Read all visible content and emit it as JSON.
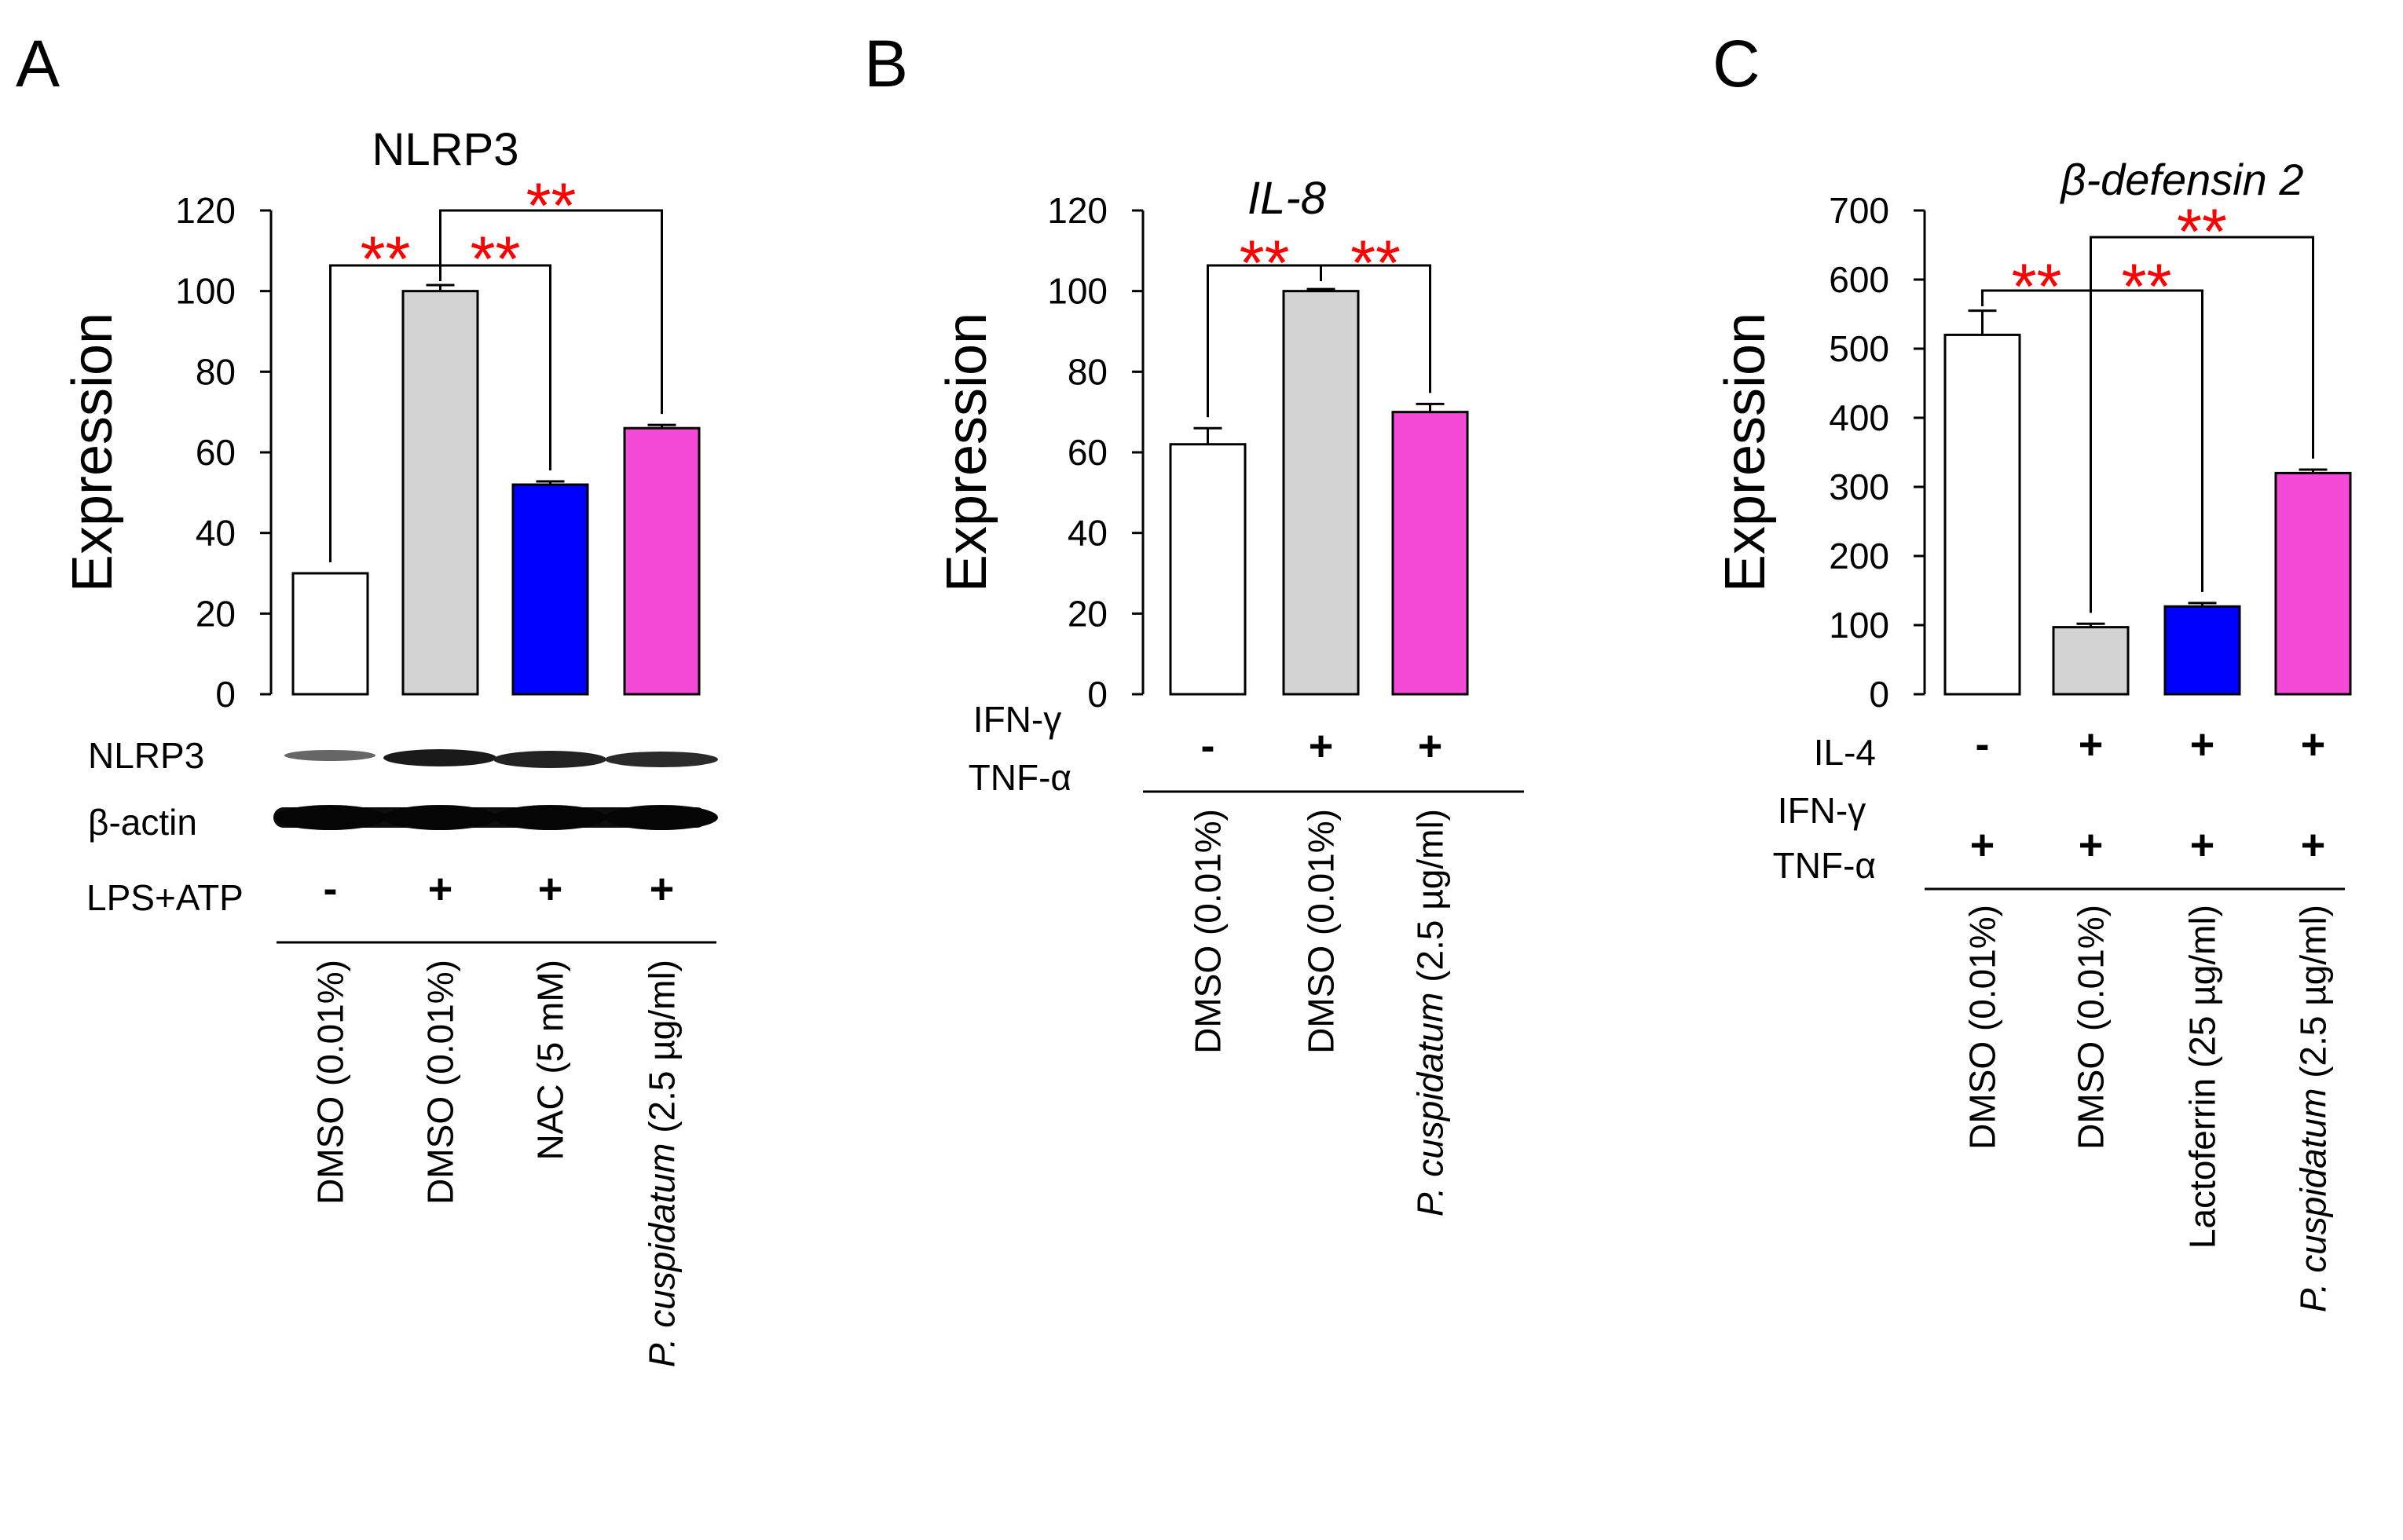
{
  "chart_data": [
    {
      "panel": "A",
      "type": "bar",
      "title": "NLRP3",
      "ylabel": "Expression",
      "ylim": [
        0,
        120
      ],
      "yticks": [
        "0",
        "20",
        "40",
        "60",
        "80",
        "100",
        "120"
      ],
      "categories": [
        "DMSO (0.01%)",
        "DMSO (0.01%)",
        "NAC (5 mM)",
        "P. cuspidatum (2.5 µg/ml)"
      ],
      "values": [
        30,
        100,
        52,
        66
      ],
      "errors": [
        0,
        1.5,
        0.8,
        0.8
      ],
      "colors": [
        "#ffffff",
        "#d3d3d3",
        "#0000ff",
        "#f54ad7"
      ],
      "treatment_rows": [
        {
          "label": "LPS+ATP",
          "signs": [
            "-",
            "+",
            "+",
            "+"
          ]
        }
      ],
      "blot_labels": [
        "NLRP3",
        "β-actin"
      ],
      "significance": [
        {
          "from": 0,
          "to": 1,
          "label": "**"
        },
        {
          "from": 1,
          "to": 2,
          "label": "**"
        },
        {
          "from": 1,
          "to": 3,
          "label": "**"
        }
      ]
    },
    {
      "panel": "B",
      "type": "bar",
      "title": "IL-8",
      "ylabel": "Expression",
      "ylim": [
        0,
        120
      ],
      "yticks": [
        "0",
        "20",
        "40",
        "60",
        "80",
        "100",
        "120"
      ],
      "categories": [
        "DMSO (0.01%)",
        "DMSO (0.01%)",
        "P. cuspidatum (2.5 µg/ml)"
      ],
      "values": [
        62,
        100,
        70
      ],
      "errors": [
        4,
        0.5,
        2
      ],
      "colors": [
        "#ffffff",
        "#d3d3d3",
        "#f54ad7"
      ],
      "treatment_rows": [
        {
          "label": "IFN-γ\nTNF-α",
          "signs": [
            "-",
            "+",
            "+"
          ]
        }
      ],
      "significance": [
        {
          "from": 0,
          "to": 1,
          "label": "**"
        },
        {
          "from": 1,
          "to": 2,
          "label": "**"
        }
      ]
    },
    {
      "panel": "C",
      "type": "bar",
      "title": "β-defensin 2",
      "ylabel": "Expression",
      "ylim": [
        0,
        700
      ],
      "yticks": [
        "0",
        "100",
        "200",
        "300",
        "400",
        "500",
        "600",
        "700"
      ],
      "categories": [
        "DMSO (0.01%)",
        "DMSO (0.01%)",
        "Lactoferrin (25 µg/ml)",
        "P. cuspidatum (2.5 µg/ml)"
      ],
      "values": [
        520,
        97,
        127,
        320
      ],
      "errors": [
        35,
        5,
        5,
        5
      ],
      "colors": [
        "#ffffff",
        "#d3d3d3",
        "#0000ff",
        "#f54ad7"
      ],
      "treatment_rows": [
        {
          "label": "IL-4",
          "signs": [
            "-",
            "+",
            "+",
            "+"
          ]
        },
        {
          "label": "IFN-γ\nTNF-α",
          "signs": [
            "+",
            "+",
            "+",
            "+"
          ]
        }
      ],
      "significance": [
        {
          "from": 0,
          "to": 1,
          "label": "**"
        },
        {
          "from": 1,
          "to": 2,
          "label": "**"
        },
        {
          "from": 1,
          "to": 3,
          "label": "**"
        }
      ]
    }
  ]
}
